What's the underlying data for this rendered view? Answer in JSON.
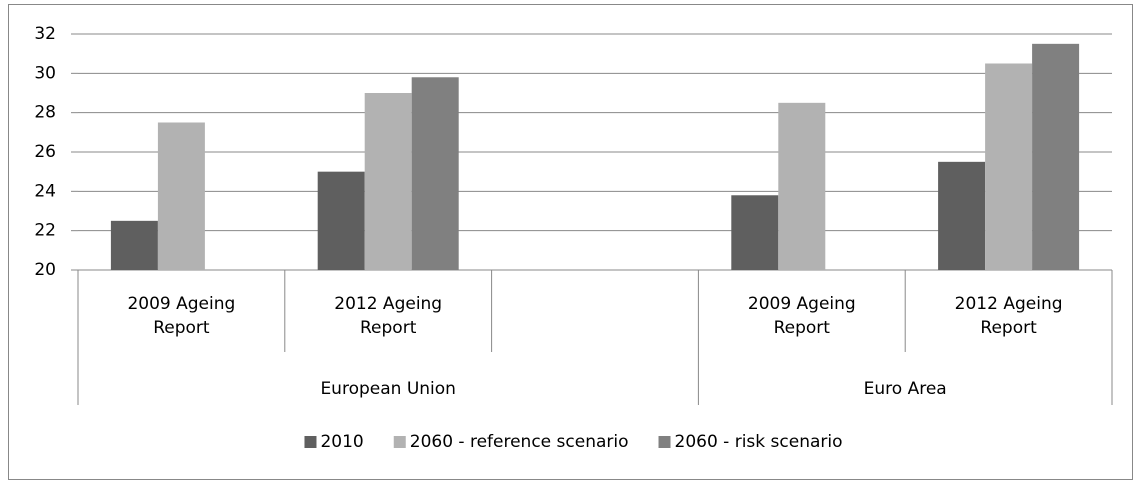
{
  "chart_data": {
    "type": "bar",
    "categories": [
      "2009 Ageing Report",
      "2012 Ageing Report",
      null,
      "2009 Ageing Report",
      "2012 Ageing Report"
    ],
    "groups": [
      {
        "name": "European Union",
        "count": 3
      },
      {
        "name": "Euro Area",
        "count": 2
      }
    ],
    "series": [
      {
        "name": "2010",
        "color": "#5f5f5f",
        "values": [
          22.5,
          25,
          null,
          23.8,
          25.5
        ]
      },
      {
        "name": "2060 - reference scenario",
        "color": "#b2b2b2",
        "values": [
          27.5,
          29,
          null,
          28.5,
          30.5
        ]
      },
      {
        "name": "2060 - risk scenario",
        "color": "#808080",
        "values": [
          null,
          29.8,
          null,
          null,
          31.5
        ]
      }
    ],
    "ylim": [
      20,
      32
    ],
    "yticks": [
      20,
      22,
      24,
      26,
      28,
      30,
      32
    ],
    "grid": true,
    "legend": "bottom"
  }
}
